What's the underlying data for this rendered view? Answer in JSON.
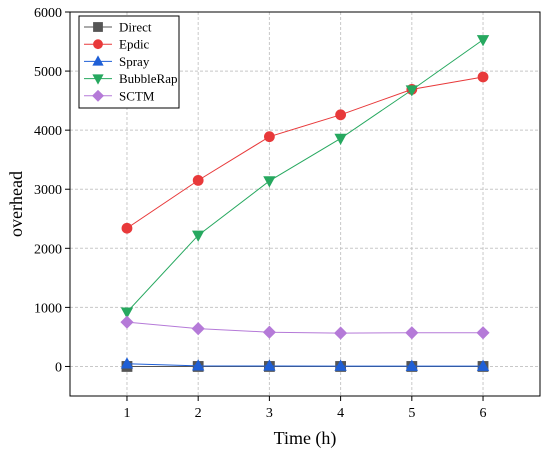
{
  "chart_data": {
    "type": "line",
    "x": [
      1,
      2,
      3,
      4,
      5,
      6
    ],
    "xlabel": "Time (h)",
    "ylabel": "overhead",
    "xlim": [
      0.2,
      6.8
    ],
    "ylim": [
      -500,
      6000
    ],
    "xticks": [
      1,
      2,
      3,
      4,
      5,
      6
    ],
    "yticks": [
      0,
      1000,
      2000,
      3000,
      4000,
      5000,
      6000
    ],
    "grid": true,
    "legend_position": "top-left",
    "series": [
      {
        "name": "Direct",
        "values": [
          0,
          0,
          0,
          0,
          0,
          0
        ],
        "color": "#555555",
        "marker": "square"
      },
      {
        "name": "Epdic",
        "values": [
          2340,
          3150,
          3890,
          4260,
          4690,
          4900
        ],
        "color": "#e8393a",
        "marker": "circle"
      },
      {
        "name": "Spray",
        "values": [
          45,
          10,
          8,
          6,
          5,
          5
        ],
        "color": "#1f5fd6",
        "marker": "triangle-up"
      },
      {
        "name": "BubbleRap",
        "values": [
          920,
          2220,
          3140,
          3860,
          4680,
          5530
        ],
        "color": "#26a85f",
        "marker": "triangle-down"
      },
      {
        "name": "SCTM",
        "values": [
          750,
          640,
          580,
          565,
          570,
          570
        ],
        "color": "#b57ad8",
        "marker": "diamond"
      }
    ]
  }
}
